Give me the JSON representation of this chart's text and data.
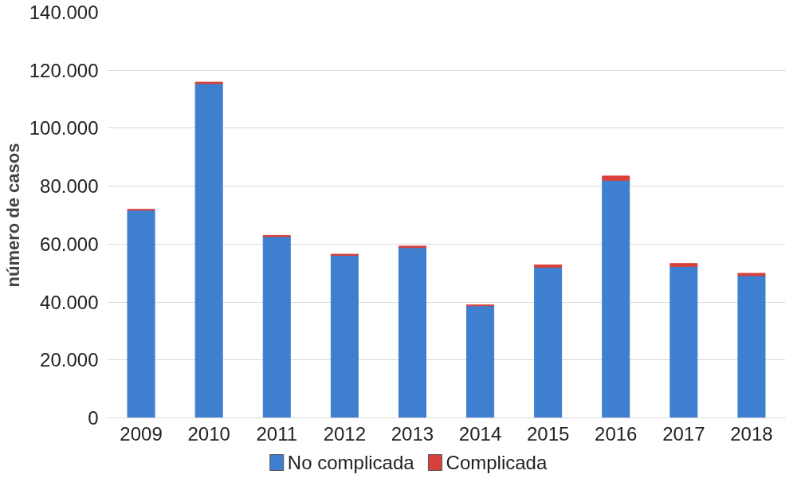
{
  "chart_data": {
    "type": "bar",
    "stacked": true,
    "ylabel": "número de casos",
    "categories": [
      "2009",
      "2010",
      "2011",
      "2012",
      "2013",
      "2014",
      "2015",
      "2016",
      "2017",
      "2018"
    ],
    "series": [
      {
        "name": "No complicada",
        "color": "#3f7fcf",
        "values": [
          71700,
          115400,
          62600,
          56100,
          58800,
          38700,
          52000,
          82000,
          52300,
          49100
        ]
      },
      {
        "name": "Complicada",
        "color": "#d9403b",
        "values": [
          300,
          500,
          400,
          400,
          500,
          300,
          800,
          1500,
          1000,
          800
        ]
      }
    ],
    "ylim": [
      0,
      140000
    ],
    "yticks": [
      {
        "value": 0,
        "label": "0"
      },
      {
        "value": 20000,
        "label": "20.000"
      },
      {
        "value": 40000,
        "label": "40.000"
      },
      {
        "value": 60000,
        "label": "60.000"
      },
      {
        "value": 80000,
        "label": "80.000"
      },
      {
        "value": 100000,
        "label": "100.000"
      },
      {
        "value": 120000,
        "label": "120.000"
      },
      {
        "value": 140000,
        "label": "140.000"
      }
    ],
    "grid": "y",
    "legend": "bottom"
  }
}
